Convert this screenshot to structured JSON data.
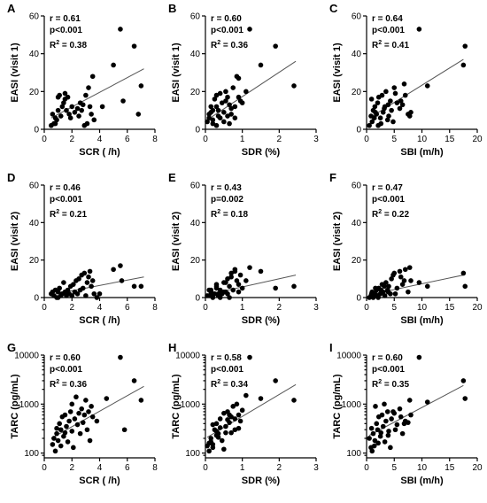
{
  "chart_data": [
    {
      "panel_label": "A",
      "type": "scatter",
      "xlabel": "SCR ( /h)",
      "ylabel": "EASI (visit 1)",
      "xlim": [
        0,
        8
      ],
      "ylim": [
        0,
        60
      ],
      "xticks": [
        0,
        2,
        4,
        6,
        8
      ],
      "yticks": [
        0,
        20,
        40,
        60
      ],
      "yscale": "linear",
      "stats": {
        "r": "r = 0.61",
        "p": "p<0.001",
        "r2": "0.38"
      },
      "fit": {
        "x": [
          0.5,
          7.2
        ],
        "y": [
          6,
          32
        ]
      },
      "points": {
        "x": [
          0.6,
          0.8,
          0.9,
          1.0,
          0.7,
          1.2,
          1.3,
          1.1,
          1.4,
          1.5,
          1.6,
          1.8,
          1.9,
          2.0,
          0.5,
          1.0,
          2.2,
          2.4,
          2.5,
          2.6,
          2.8,
          3.0,
          3.2,
          3.3,
          3.4,
          3.5,
          3.6,
          3.1,
          2.9,
          2.7,
          1.7,
          1.5,
          0.8,
          5.0,
          5.5,
          5.7,
          6.5,
          7.0,
          6.8,
          4.2
        ],
        "y": [
          8,
          6,
          5,
          10,
          3,
          7,
          12,
          18,
          14,
          16,
          10,
          8,
          6,
          12,
          2,
          17,
          9,
          11,
          7,
          14,
          13,
          18,
          22,
          12,
          8,
          28,
          5,
          3,
          2,
          10,
          17,
          19,
          3,
          34,
          53,
          15,
          44,
          23,
          8,
          12
        ]
      }
    },
    {
      "panel_label": "B",
      "type": "scatter",
      "xlabel": "SDR (%)",
      "ylabel": "EASI (visit 1)",
      "xlim": [
        0,
        3
      ],
      "ylim": [
        0,
        60
      ],
      "xticks": [
        0,
        1,
        2,
        3
      ],
      "yticks": [
        0,
        20,
        40,
        60
      ],
      "yscale": "linear",
      "stats": {
        "r": "r = 0.60",
        "p": "p<0.001",
        "r2": "0.36"
      },
      "fit": {
        "x": [
          0.05,
          2.45
        ],
        "y": [
          5,
          36
        ]
      },
      "points": {
        "x": [
          0.1,
          0.15,
          0.2,
          0.25,
          0.3,
          0.35,
          0.4,
          0.45,
          0.5,
          0.55,
          0.6,
          0.65,
          0.7,
          0.75,
          0.8,
          0.85,
          0.9,
          0.95,
          1.0,
          0.2,
          0.3,
          0.4,
          0.5,
          0.6,
          0.7,
          0.1,
          0.2,
          0.3,
          1.1,
          1.2,
          1.5,
          1.9,
          2.4,
          0.8,
          0.9,
          0.05,
          0.15,
          0.35,
          0.55,
          0.65
        ],
        "y": [
          8,
          12,
          5,
          16,
          18,
          10,
          6,
          14,
          9,
          20,
          7,
          13,
          11,
          22,
          12,
          28,
          27,
          15,
          14,
          3,
          2,
          19,
          4,
          17,
          8,
          6,
          10,
          12,
          20,
          53,
          34,
          44,
          23,
          6,
          17,
          4,
          9,
          7,
          15,
          3
        ]
      }
    },
    {
      "panel_label": "C",
      "type": "scatter",
      "xlabel": "SBI (m/h)",
      "ylabel": "EASI (visit 1)",
      "xlim": [
        0,
        20
      ],
      "ylim": [
        0,
        60
      ],
      "xticks": [
        0,
        5,
        10,
        15,
        20
      ],
      "yticks": [
        0,
        20,
        40,
        60
      ],
      "yscale": "linear",
      "stats": {
        "r": "r = 0.64",
        "p": "p<0.001",
        "r2": "0.41"
      },
      "fit": {
        "x": [
          0.5,
          17.5
        ],
        "y": [
          6,
          37
        ]
      },
      "points": {
        "x": [
          0.8,
          1.0,
          1.2,
          1.5,
          1.8,
          2.0,
          2.2,
          2.5,
          2.8,
          3.0,
          3.3,
          3.5,
          3.8,
          4.0,
          4.3,
          4.5,
          5.0,
          5.5,
          6.0,
          6.5,
          7.0,
          7.5,
          8.0,
          0.5,
          0.9,
          1.4,
          2.6,
          3.2,
          4.8,
          5.2,
          6.2,
          6.8,
          7.8,
          9.5,
          11,
          17.5,
          17.8,
          2.1,
          3.9,
          1.6
        ],
        "y": [
          7,
          4,
          10,
          12,
          8,
          14,
          17,
          6,
          18,
          9,
          12,
          20,
          5,
          7,
          15,
          10,
          22,
          14,
          11,
          13,
          18,
          8,
          9,
          2,
          16,
          6,
          3,
          11,
          4,
          19,
          15,
          24,
          7,
          53,
          23,
          34,
          44,
          2,
          13,
          9
        ]
      }
    },
    {
      "panel_label": "D",
      "type": "scatter",
      "xlabel": "SCR ( /h)",
      "ylabel": "EASI (visit 2)",
      "xlim": [
        0,
        8
      ],
      "ylim": [
        0,
        60
      ],
      "xticks": [
        0,
        2,
        4,
        6,
        8
      ],
      "yticks": [
        0,
        20,
        40,
        60
      ],
      "yscale": "linear",
      "stats": {
        "r": "r = 0.46",
        "p": "p<0.001",
        "r2": "0.21"
      },
      "fit": {
        "x": [
          0.5,
          7.2
        ],
        "y": [
          1.5,
          11
        ]
      },
      "points": {
        "x": [
          0.5,
          0.7,
          0.8,
          0.9,
          1.0,
          1.1,
          1.2,
          1.3,
          1.4,
          1.5,
          1.6,
          1.7,
          1.8,
          1.9,
          2.0,
          2.1,
          2.2,
          2.3,
          2.4,
          2.5,
          2.6,
          2.7,
          2.8,
          2.9,
          3.0,
          3.1,
          3.2,
          3.3,
          3.4,
          3.5,
          3.6,
          3.8,
          1.0,
          0.6,
          5.0,
          5.5,
          5.6,
          6.5,
          7.0,
          4.0
        ],
        "y": [
          2,
          1,
          4,
          0,
          3,
          5,
          1,
          2,
          8,
          3,
          1,
          4,
          2,
          6,
          1,
          7,
          3,
          9,
          2,
          10,
          4,
          12,
          5,
          13,
          1,
          8,
          11,
          14,
          6,
          9,
          2,
          0,
          0,
          3,
          15,
          17,
          9,
          6,
          6,
          2
        ]
      }
    },
    {
      "panel_label": "E",
      "type": "scatter",
      "xlabel": "SDR (%)",
      "ylabel": "EASI (visit 2)",
      "xlim": [
        0,
        3
      ],
      "ylim": [
        0,
        60
      ],
      "xticks": [
        0,
        1,
        2,
        3
      ],
      "yticks": [
        0,
        20,
        40,
        60
      ],
      "yscale": "linear",
      "stats": {
        "r": "r = 0.43",
        "p": "p=0.002",
        "r2": "0.18"
      },
      "fit": {
        "x": [
          0.05,
          2.45
        ],
        "y": [
          1.5,
          12
        ]
      },
      "points": {
        "x": [
          0.1,
          0.15,
          0.2,
          0.25,
          0.3,
          0.35,
          0.4,
          0.45,
          0.5,
          0.55,
          0.6,
          0.65,
          0.7,
          0.75,
          0.8,
          0.85,
          0.9,
          0.95,
          1.0,
          0.2,
          0.3,
          0.4,
          0.5,
          0.6,
          0.7,
          0.1,
          0.2,
          0.3,
          1.1,
          1.2,
          1.5,
          1.9,
          2.4,
          0.8,
          0.9,
          0.05,
          0.15,
          0.35,
          0.55,
          0.65
        ],
        "y": [
          1,
          3,
          0,
          2,
          5,
          1,
          4,
          2,
          8,
          3,
          10,
          6,
          13,
          4,
          14,
          9,
          7,
          12,
          5,
          1,
          7,
          0,
          3,
          2,
          11,
          4,
          2,
          6,
          9,
          16,
          14,
          5,
          6,
          15,
          3,
          1,
          4,
          2,
          8,
          0
        ]
      }
    },
    {
      "panel_label": "F",
      "type": "scatter",
      "xlabel": "SBI (m/h)",
      "ylabel": "EASI (visit 2)",
      "xlim": [
        0,
        20
      ],
      "ylim": [
        0,
        60
      ],
      "xticks": [
        0,
        5,
        10,
        15,
        20
      ],
      "yticks": [
        0,
        20,
        40,
        60
      ],
      "yscale": "linear",
      "stats": {
        "r": "r = 0.47",
        "p": "p<0.001",
        "r2": "0.22"
      },
      "fit": {
        "x": [
          0.5,
          17.5
        ],
        "y": [
          1.5,
          12
        ]
      },
      "points": {
        "x": [
          0.8,
          1.0,
          1.2,
          1.5,
          1.8,
          2.0,
          2.2,
          2.5,
          2.8,
          3.0,
          3.3,
          3.5,
          3.8,
          4.0,
          4.3,
          4.5,
          5.0,
          5.5,
          6.0,
          6.5,
          7.0,
          7.5,
          8.0,
          0.5,
          0.9,
          1.4,
          2.6,
          3.2,
          4.8,
          5.2,
          6.2,
          6.8,
          7.8,
          9.5,
          11,
          17.5,
          17.8,
          2.1,
          3.9,
          1.6
        ],
        "y": [
          1,
          3,
          0,
          2,
          4,
          1,
          5,
          2,
          7,
          3,
          1,
          8,
          4,
          6,
          2,
          10,
          13,
          5,
          14,
          7,
          15,
          3,
          9,
          0,
          2,
          1,
          4,
          6,
          12,
          2,
          11,
          9,
          16,
          8,
          6,
          13,
          6,
          0,
          3,
          5
        ]
      }
    },
    {
      "panel_label": "G",
      "type": "scatter",
      "xlabel": "SCR ( /h)",
      "ylabel": "TARC (pg/mL)",
      "xlim": [
        0,
        8
      ],
      "ylim": [
        80,
        10000
      ],
      "xticks": [
        0,
        2,
        4,
        6,
        8
      ],
      "yticks": [
        100,
        1000,
        10000
      ],
      "yscale": "log",
      "stats": {
        "r": "r = 0.60",
        "p": "p<0.001",
        "r2": "0.36"
      },
      "fit": {
        "x": [
          0.5,
          7.2
        ],
        "y": [
          200,
          2300
        ]
      },
      "points": {
        "x": [
          0.6,
          0.8,
          0.9,
          1.0,
          1.1,
          1.2,
          1.3,
          1.4,
          1.5,
          1.6,
          1.7,
          1.8,
          1.9,
          2.0,
          2.1,
          2.2,
          2.3,
          2.4,
          2.5,
          2.6,
          2.7,
          2.8,
          2.9,
          3.0,
          3.1,
          3.2,
          3.3,
          3.4,
          3.5,
          0.7,
          0.9,
          1.2,
          1.5,
          4.5,
          5.5,
          5.8,
          6.5,
          7.0,
          3.8,
          2.0
        ],
        "y": [
          150,
          110,
          250,
          180,
          400,
          300,
          550,
          220,
          600,
          350,
          170,
          450,
          700,
          280,
          130,
          500,
          1400,
          380,
          650,
          250,
          800,
          420,
          600,
          1200,
          300,
          700,
          180,
          900,
          550,
          200,
          320,
          140,
          260,
          1300,
          9000,
          300,
          3000,
          1200,
          450,
          1000
        ]
      }
    },
    {
      "panel_label": "H",
      "type": "scatter",
      "xlabel": "SDR (%)",
      "ylabel": "TARC (pg/mL)",
      "xlim": [
        0,
        3
      ],
      "ylim": [
        80,
        10000
      ],
      "xticks": [
        0,
        1,
        2,
        3
      ],
      "yticks": [
        100,
        1000,
        10000
      ],
      "yscale": "log",
      "stats": {
        "r": "r = 0.58",
        "p": "p<0.001",
        "r2": "0.34"
      },
      "fit": {
        "x": [
          0.05,
          2.45
        ],
        "y": [
          210,
          2500
        ]
      },
      "points": {
        "x": [
          0.1,
          0.15,
          0.2,
          0.25,
          0.3,
          0.35,
          0.4,
          0.45,
          0.5,
          0.55,
          0.6,
          0.65,
          0.7,
          0.75,
          0.8,
          0.85,
          0.9,
          0.95,
          1.0,
          0.2,
          0.3,
          0.4,
          0.5,
          0.6,
          0.7,
          0.1,
          0.2,
          0.3,
          1.1,
          1.2,
          1.5,
          1.9,
          2.4,
          0.8,
          0.9,
          0.05,
          0.15,
          0.35,
          0.55,
          0.65
        ],
        "y": [
          110,
          200,
          150,
          300,
          400,
          250,
          500,
          180,
          650,
          350,
          700,
          420,
          550,
          900,
          300,
          1000,
          600,
          450,
          750,
          130,
          230,
          330,
          120,
          480,
          260,
          160,
          380,
          280,
          1500,
          9000,
          1300,
          3000,
          1200,
          500,
          320,
          140,
          170,
          210,
          260,
          600
        ]
      }
    },
    {
      "panel_label": "I",
      "type": "scatter",
      "xlabel": "SBI (m/h)",
      "ylabel": "TARC (pg/mL)",
      "xlim": [
        0,
        20
      ],
      "ylim": [
        80,
        10000
      ],
      "xticks": [
        0,
        5,
        10,
        15,
        20
      ],
      "yticks": [
        100,
        1000,
        10000
      ],
      "yscale": "log",
      "stats": {
        "r": "r = 0.60",
        "p": "p<0.001",
        "r2": "0.35"
      },
      "fit": {
        "x": [
          0.5,
          17.5
        ],
        "y": [
          230,
          2400
        ]
      },
      "points": {
        "x": [
          0.8,
          1.0,
          1.2,
          1.5,
          1.8,
          2.0,
          2.2,
          2.5,
          2.8,
          3.0,
          3.3,
          3.5,
          3.8,
          4.0,
          4.3,
          4.5,
          5.0,
          5.5,
          6.0,
          6.5,
          7.0,
          7.5,
          8.0,
          0.5,
          0.9,
          1.4,
          2.6,
          3.2,
          4.8,
          5.2,
          6.2,
          6.8,
          7.8,
          9.5,
          11,
          17.5,
          17.8,
          2.1,
          3.9,
          1.6
        ],
        "y": [
          130,
          110,
          250,
          180,
          400,
          300,
          550,
          220,
          600,
          350,
          170,
          450,
          700,
          280,
          130,
          500,
          650,
          380,
          800,
          250,
          450,
          420,
          600,
          200,
          320,
          140,
          260,
          1000,
          700,
          300,
          550,
          400,
          1200,
          9000,
          1100,
          3000,
          1300,
          160,
          230,
          900
        ]
      }
    }
  ]
}
